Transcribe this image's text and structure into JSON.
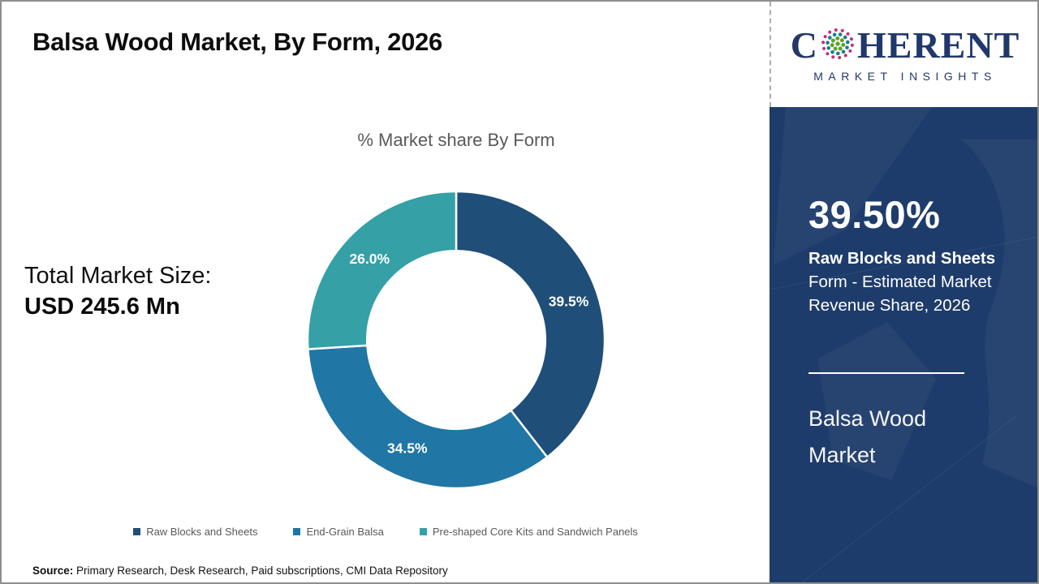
{
  "page": {
    "title": "Balsa Wood Market, By Form, 2026",
    "source_label": "Source:",
    "source_text": "Primary Research, Desk Research, Paid subscriptions, CMI Data Repository"
  },
  "total_market": {
    "label": "Total Market Size:",
    "value": "USD 245.6 Mn"
  },
  "logo": {
    "word_start": "C",
    "word_end": "HERENT",
    "subtitle": "MARKET INSIGHTS",
    "brand_navy": "#21386B",
    "globe_colors": {
      "outer": "#BE2E7E",
      "middle": "#147E8A",
      "inner": "#5FA32B"
    }
  },
  "sidebar": {
    "headline_value": "39.50%",
    "headline_bold": "Raw Blocks and Sheets",
    "headline_rest": "Form - Estimated Market Revenue Share, 2026",
    "footer_title": "Balsa Wood Market",
    "background_color": "#1E3C6B"
  },
  "chart_data": {
    "type": "pie",
    "subtype": "donut",
    "title": "% Market share By Form",
    "categories": [
      "Raw Blocks and Sheets",
      "End-Grain Balsa",
      "Pre-shaped Core Kits and Sandwich Panels"
    ],
    "values": [
      39.5,
      34.5,
      26.0
    ],
    "slice_labels": [
      "39.5%",
      "34.5%",
      "26.0%"
    ],
    "colors": [
      "#1F4E79",
      "#2076A4",
      "#35A0A6"
    ],
    "start_angle_deg": 0,
    "direction": "clockwise",
    "inner_radius_ratio": 0.6,
    "slice_label_color": "#FFFFFF",
    "legend_position": "bottom",
    "title_color": "#595959"
  }
}
